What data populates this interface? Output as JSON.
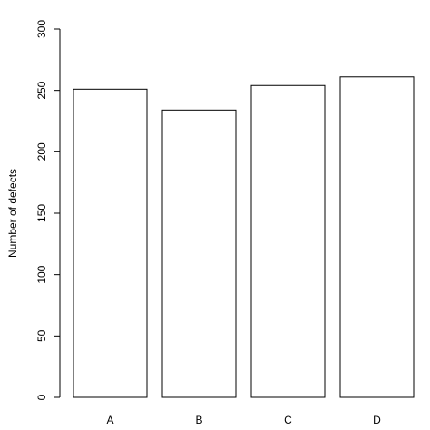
{
  "chart_data": {
    "type": "bar",
    "title": "",
    "xlabel": "",
    "ylabel": "Number of defects",
    "categories": [
      "A",
      "B",
      "C",
      "D"
    ],
    "values": [
      251,
      234,
      254,
      261
    ],
    "ylim": [
      0,
      300
    ],
    "yticks": [
      0,
      50,
      100,
      150,
      200,
      250,
      300
    ],
    "grid": false,
    "legend": "none",
    "colors": {
      "bar_fill": "#ffffff",
      "bar_stroke": "#000000",
      "axis": "#000000"
    }
  }
}
